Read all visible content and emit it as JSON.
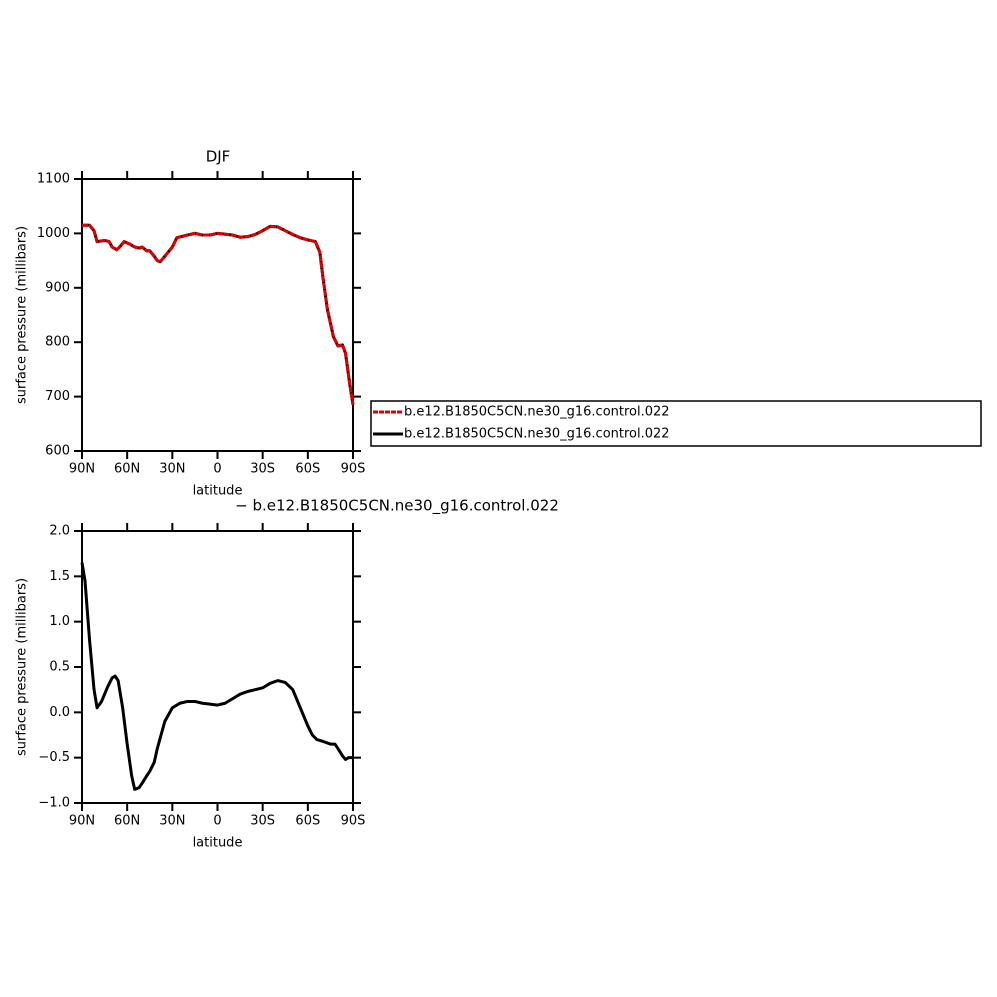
{
  "chart_data": [
    {
      "type": "line",
      "title": "DJF",
      "x_label": "latitude",
      "y_label": "surface pressure (millibars)",
      "xlim": [
        90,
        -90
      ],
      "ylim": [
        600,
        1100
      ],
      "xticks": [
        {
          "value": 90,
          "label": "90N"
        },
        {
          "value": 60,
          "label": "60N"
        },
        {
          "value": 30,
          "label": "30N"
        },
        0,
        {
          "value": -30,
          "label": "30S"
        },
        {
          "value": -60,
          "label": "60S"
        },
        {
          "value": -90,
          "label": "90S"
        }
      ],
      "yticks": [
        600,
        700,
        800,
        900,
        1000,
        1100
      ],
      "legend_position": "right",
      "x": [
        90,
        85,
        82,
        80,
        75,
        72,
        70,
        67,
        65,
        62,
        58,
        55,
        52,
        50,
        47,
        45,
        42,
        40,
        38,
        35,
        30,
        27,
        20,
        15,
        10,
        5,
        0,
        -10,
        -15,
        -20,
        -25,
        -30,
        -35,
        -40,
        -45,
        -50,
        -55,
        -60,
        -65,
        -68,
        -70,
        -73,
        -77,
        -80,
        -83,
        -85,
        -88,
        -90
      ],
      "series": [
        {
          "name": "b.e12.B1850C5CN.ne30_g16.control.022",
          "color": "#e00000",
          "line_style": "dashed",
          "values": [
            1015,
            1015,
            1005,
            985,
            987,
            985,
            975,
            970,
            975,
            985,
            980,
            975,
            973,
            975,
            968,
            968,
            958,
            950,
            948,
            958,
            975,
            992,
            997,
            1000,
            997,
            997,
            1000,
            997,
            993,
            994,
            998,
            1005,
            1013,
            1012,
            1005,
            998,
            992,
            988,
            985,
            965,
            920,
            860,
            810,
            793,
            795,
            780,
            720,
            685
          ]
        },
        {
          "name": "b.e12.B1850C5CN.ne30_g16.control.022",
          "color": "#000000",
          "line_style": "solid",
          "values": [
            1015,
            1015,
            1005,
            985,
            987,
            985,
            975,
            970,
            975,
            985,
            980,
            975,
            973,
            975,
            968,
            968,
            958,
            950,
            948,
            958,
            975,
            992,
            997,
            1000,
            997,
            997,
            1000,
            997,
            993,
            994,
            998,
            1005,
            1013,
            1012,
            1005,
            998,
            992,
            988,
            985,
            965,
            920,
            860,
            810,
            793,
            795,
            780,
            720,
            685
          ]
        }
      ]
    },
    {
      "type": "line",
      "title": "− b.e12.B1850C5CN.ne30_g16.control.022",
      "x_label": "latitude",
      "y_label": "surface pressure (millibars)",
      "xlim": [
        90,
        -90
      ],
      "ylim": [
        -1,
        2
      ],
      "xticks": [
        {
          "value": 90,
          "label": "90N"
        },
        {
          "value": 60,
          "label": "60N"
        },
        {
          "value": 30,
          "label": "30N"
        },
        0,
        {
          "value": -30,
          "label": "30S"
        },
        {
          "value": -60,
          "label": "60S"
        },
        {
          "value": -90,
          "label": "90S"
        }
      ],
      "yticks": [
        {
          "value": -1,
          "label": "−1.0"
        },
        {
          "value": -0.5,
          "label": "−0.5"
        },
        {
          "value": 0,
          "label": "0.0"
        },
        0.5,
        {
          "value": 1,
          "label": "1.0"
        },
        1.5,
        {
          "value": 2,
          "label": "2.0"
        }
      ],
      "x": [
        90,
        88,
        85,
        82,
        80,
        77,
        73,
        70,
        68,
        66,
        63,
        60,
        57,
        55,
        52,
        50,
        47,
        45,
        42,
        40,
        35,
        30,
        25,
        20,
        15,
        10,
        5,
        0,
        -5,
        -10,
        -15,
        -20,
        -25,
        -30,
        -35,
        -40,
        -45,
        -50,
        -55,
        -60,
        -63,
        -66,
        -70,
        -75,
        -78,
        -80,
        -83,
        -85,
        -87,
        -90
      ],
      "series": [
        {
          "color": "#000000",
          "line_style": "solid",
          "values": [
            1.65,
            1.45,
            0.8,
            0.25,
            0.05,
            0.12,
            0.28,
            0.38,
            0.4,
            0.35,
            0.05,
            -0.35,
            -0.7,
            -0.85,
            -0.83,
            -0.78,
            -0.7,
            -0.65,
            -0.55,
            -0.4,
            -0.1,
            0.05,
            0.1,
            0.12,
            0.12,
            0.1,
            0.09,
            0.08,
            0.1,
            0.15,
            0.2,
            0.23,
            0.25,
            0.27,
            0.32,
            0.35,
            0.33,
            0.25,
            0.05,
            -0.15,
            -0.25,
            -0.3,
            -0.32,
            -0.35,
            -0.35,
            -0.4,
            -0.48,
            -0.52,
            -0.5,
            -0.5
          ]
        }
      ]
    }
  ]
}
